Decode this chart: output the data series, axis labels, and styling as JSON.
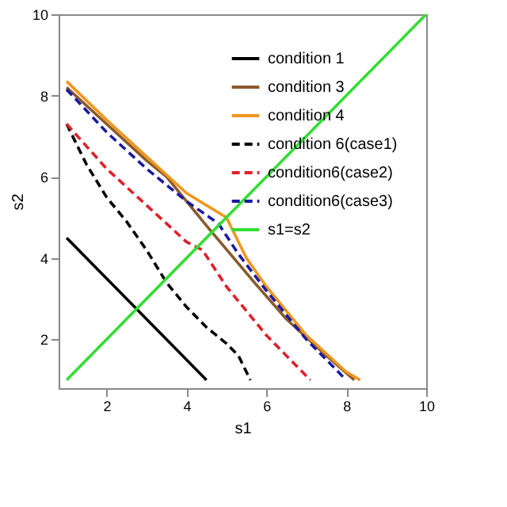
{
  "chart_data": {
    "type": "line",
    "xlabel": "s1",
    "ylabel": "s2",
    "xlim": [
      0.8,
      10
    ],
    "ylim": [
      0.8,
      10
    ],
    "xticks": [
      2,
      4,
      6,
      8,
      10
    ],
    "yticks": [
      2,
      4,
      6,
      8,
      10
    ],
    "grid": false,
    "legend": "top right",
    "series": [
      {
        "name": "condition 1",
        "color": "#000000",
        "line_style": "solid",
        "x": [
          1,
          4.5
        ],
        "values": [
          4.5,
          1
        ]
      },
      {
        "name": "condition 3",
        "color": "#8b5a2b",
        "line_style": "solid",
        "x": [
          1,
          2,
          3,
          3.5,
          4.5,
          5.7,
          6.5,
          7.5,
          8.2
        ],
        "values": [
          8.2,
          7.3,
          6.4,
          6.0,
          4.8,
          3.4,
          2.5,
          1.6,
          1
        ]
      },
      {
        "name": "condition 4",
        "color": "#f0961e",
        "line_style": "solid",
        "x": [
          1,
          2,
          3,
          4,
          5,
          5.5,
          6,
          7,
          8,
          8.35
        ],
        "values": [
          8.35,
          7.4,
          6.5,
          5.6,
          5.0,
          4.0,
          3.3,
          2.1,
          1.2,
          1
        ]
      },
      {
        "name": "condition 6(case1)",
        "color": "#000000",
        "line_style": "dashed",
        "x": [
          1,
          1.5,
          2,
          2.5,
          3,
          3.5,
          4,
          4.5,
          5,
          5.3,
          5.6
        ],
        "values": [
          7.3,
          6.3,
          5.5,
          4.9,
          4.2,
          3.4,
          2.8,
          2.3,
          1.9,
          1.6,
          1
        ]
      },
      {
        "name": "condition6(case2)",
        "color": "#e0202a",
        "line_style": "dashed",
        "x": [
          1,
          2,
          3,
          4,
          4.4,
          5,
          6,
          7.1
        ],
        "values": [
          7.3,
          6.2,
          5.3,
          4.4,
          4.2,
          3.3,
          2.1,
          1
        ]
      },
      {
        "name": "condition6(case3)",
        "color": "#1a1aa0",
        "line_style": "dashed",
        "x": [
          1,
          2,
          3,
          4,
          4.8,
          5.3,
          6,
          7,
          8
        ],
        "values": [
          8.15,
          7.1,
          6.2,
          5.4,
          4.85,
          4.1,
          3.2,
          2.0,
          1
        ]
      },
      {
        "name": "s1=s2",
        "color": "#33dd33",
        "line_style": "solid",
        "x": [
          1,
          10
        ],
        "values": [
          1,
          10
        ]
      }
    ]
  }
}
